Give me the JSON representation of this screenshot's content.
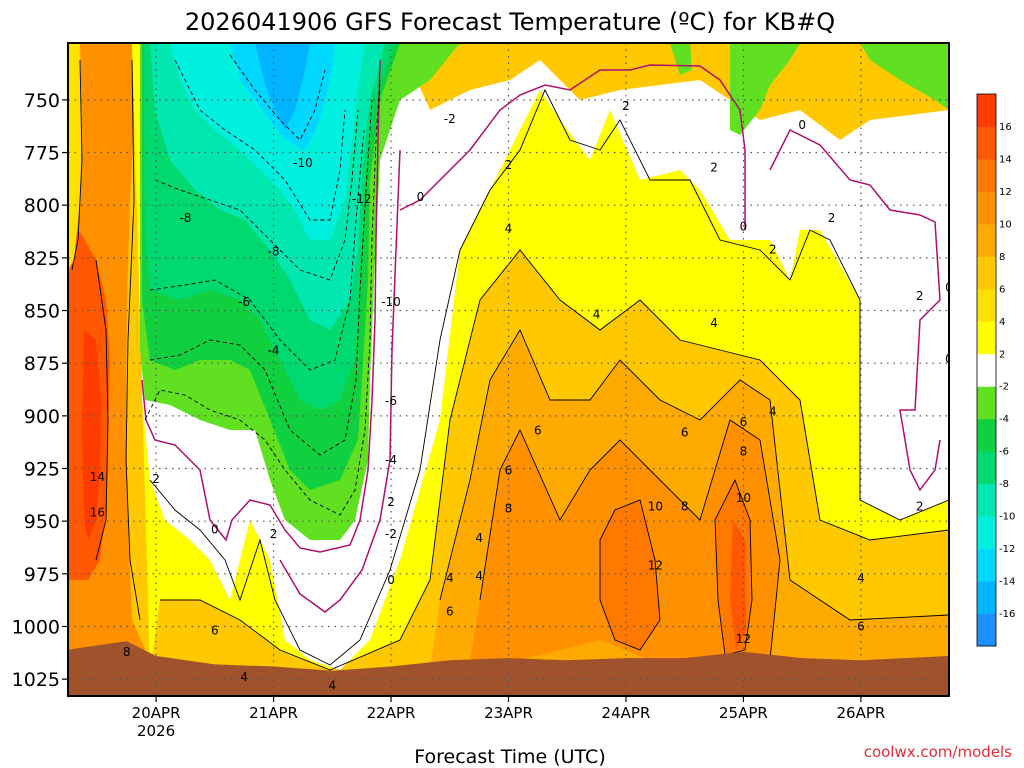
{
  "title": "2026041906 GFS Forecast Temperature (ºC) for KB#Q",
  "watermark": "coolwx.com/models",
  "chart_data": {
    "type": "heatmap",
    "title": "2026041906 GFS Forecast Temperature (ºC) for KB#Q",
    "xlabel": "Forecast Time (UTC)",
    "ylabel": "",
    "x_range": [
      "2026-04-19T06",
      "2026-04-26T18"
    ],
    "x_ticks": [
      {
        "t": "2026-04-20T00",
        "label": "20APR",
        "sublabel": "2026"
      },
      {
        "t": "2026-04-21T00",
        "label": "21APR",
        "sublabel": ""
      },
      {
        "t": "2026-04-22T00",
        "label": "22APR",
        "sublabel": ""
      },
      {
        "t": "2026-04-23T00",
        "label": "23APR",
        "sublabel": ""
      },
      {
        "t": "2026-04-24T00",
        "label": "24APR",
        "sublabel": ""
      },
      {
        "t": "2026-04-25T00",
        "label": "25APR",
        "sublabel": ""
      },
      {
        "t": "2026-04-26T00",
        "label": "26APR",
        "sublabel": ""
      }
    ],
    "y_range_hPa": [
      1033,
      723
    ],
    "y_ticks": [
      {
        "p": 750,
        "label": "750"
      },
      {
        "p": 775,
        "label": "775"
      },
      {
        "p": 800,
        "label": "800"
      },
      {
        "p": 825,
        "label": "825"
      },
      {
        "p": 850,
        "label": "850"
      },
      {
        "p": 875,
        "label": "875"
      },
      {
        "p": 900,
        "label": "900"
      },
      {
        "p": 925,
        "label": "925"
      },
      {
        "p": 950,
        "label": "950"
      },
      {
        "p": 975,
        "label": "975"
      },
      {
        "p": 1000,
        "label": "1000"
      },
      {
        "p": 1025,
        "label": "1025"
      }
    ],
    "grid": true,
    "ground_pressure_hPa": [
      {
        "t": "2026-04-19T06",
        "p": 1011
      },
      {
        "t": "2026-04-19T12",
        "p": 1009
      },
      {
        "t": "2026-04-19T18",
        "p": 1007
      },
      {
        "t": "2026-04-20T00",
        "p": 1014
      },
      {
        "t": "2026-04-20T12",
        "p": 1018
      },
      {
        "t": "2026-04-21T00",
        "p": 1019
      },
      {
        "t": "2026-04-21T12",
        "p": 1021
      },
      {
        "t": "2026-04-22T00",
        "p": 1019
      },
      {
        "t": "2026-04-22T12",
        "p": 1016
      },
      {
        "t": "2026-04-23T00",
        "p": 1015
      },
      {
        "t": "2026-04-23T12",
        "p": 1016
      },
      {
        "t": "2026-04-24T00",
        "p": 1015
      },
      {
        "t": "2026-04-24T12",
        "p": 1015
      },
      {
        "t": "2026-04-25T00",
        "p": 1012
      },
      {
        "t": "2026-04-25T12",
        "p": 1015
      },
      {
        "t": "2026-04-26T00",
        "p": 1016
      },
      {
        "t": "2026-04-26T18",
        "p": 1014
      }
    ],
    "colorbar": {
      "levels": [
        -18,
        -16,
        -14,
        -12,
        -10,
        -8,
        -6,
        -4,
        -2,
        2,
        4,
        6,
        8,
        10,
        12,
        14,
        16,
        18
      ],
      "colors": [
        "#1e90ff",
        "#00b4ff",
        "#00d8ff",
        "#00f0e0",
        "#00e8b0",
        "#00d870",
        "#10d040",
        "#60e020",
        "#ffffff",
        "#ffff00",
        "#ffe000",
        "#ffc800",
        "#ffaa00",
        "#ff9000",
        "#ff7800",
        "#ff5800",
        "#ff3c00"
      ],
      "labels": [
        "16",
        "14",
        "12",
        "10",
        "8",
        "6",
        "4",
        "2",
        "-2",
        "-4",
        "-6",
        "-8",
        "-10",
        "-12",
        "-14",
        "-16"
      ]
    },
    "contour_labels": [
      {
        "t": "2026-04-21T06",
        "p": 780,
        "value": "-10"
      },
      {
        "t": "2026-04-20T06",
        "p": 806,
        "value": "-8"
      },
      {
        "t": "2026-04-21T18",
        "p": 797,
        "value": "-12"
      },
      {
        "t": "2026-04-21T00",
        "p": 822,
        "value": "-8"
      },
      {
        "t": "2026-04-20T18",
        "p": 846,
        "value": "-6"
      },
      {
        "t": "2026-04-21T00",
        "p": 869,
        "value": "-4"
      },
      {
        "t": "2026-04-22T00",
        "p": 846,
        "value": "-10"
      },
      {
        "t": "2026-04-22T00",
        "p": 893,
        "value": "-6"
      },
      {
        "t": "2026-04-22T00",
        "p": 921,
        "value": "-4"
      },
      {
        "t": "2026-04-22T00",
        "p": 956,
        "value": "-2"
      },
      {
        "t": "2026-04-22T12",
        "p": 759,
        "value": "-2"
      },
      {
        "t": "2026-04-22T06",
        "p": 796,
        "value": "0"
      },
      {
        "t": "2026-04-22T00",
        "p": 978,
        "value": "0"
      },
      {
        "t": "2026-04-20T12",
        "p": 954,
        "value": "0"
      },
      {
        "t": "2026-04-20T00",
        "p": 930,
        "value": "2"
      },
      {
        "t": "2026-04-21T00",
        "p": 956,
        "value": "2"
      },
      {
        "t": "2026-04-22T00",
        "p": 941,
        "value": "2"
      },
      {
        "t": "2026-04-23T00",
        "p": 781,
        "value": "2"
      },
      {
        "t": "2026-04-24T00",
        "p": 753,
        "value": "2"
      },
      {
        "t": "2026-04-24T18",
        "p": 782,
        "value": "2"
      },
      {
        "t": "2026-04-25T06",
        "p": 821,
        "value": "2"
      },
      {
        "t": "2026-04-25T18",
        "p": 806,
        "value": "2"
      },
      {
        "t": "2026-04-26T12",
        "p": 843,
        "value": "2"
      },
      {
        "t": "2026-04-26T12",
        "p": 943,
        "value": "2"
      },
      {
        "t": "2026-04-25T12",
        "p": 762,
        "value": "0"
      },
      {
        "t": "2026-04-25T00",
        "p": 810,
        "value": "0"
      },
      {
        "t": "2026-04-26T18",
        "p": 839,
        "value": "0"
      },
      {
        "t": "2026-04-26T18",
        "p": 873,
        "value": "0"
      },
      {
        "t": "2026-04-23T00",
        "p": 811,
        "value": "4"
      },
      {
        "t": "2026-04-23T18",
        "p": 852,
        "value": "4"
      },
      {
        "t": "2026-04-24T18",
        "p": 856,
        "value": "4"
      },
      {
        "t": "2026-04-25T06",
        "p": 898,
        "value": "4"
      },
      {
        "t": "2026-04-22T12",
        "p": 977,
        "value": "4"
      },
      {
        "t": "2026-04-22T18",
        "p": 976,
        "value": "4"
      },
      {
        "t": "2026-04-22T18",
        "p": 958,
        "value": "4"
      },
      {
        "t": "2026-04-21T12",
        "p": 1028,
        "value": "4"
      },
      {
        "t": "2026-04-20T18",
        "p": 1024,
        "value": "4"
      },
      {
        "t": "2026-04-26T00",
        "p": 977,
        "value": "4"
      },
      {
        "t": "2026-04-23T06",
        "p": 907,
        "value": "6"
      },
      {
        "t": "2026-04-23T00",
        "p": 926,
        "value": "6"
      },
      {
        "t": "2026-04-24T12",
        "p": 908,
        "value": "6"
      },
      {
        "t": "2026-04-25T00",
        "p": 903,
        "value": "6"
      },
      {
        "t": "2026-04-22T12",
        "p": 993,
        "value": "6"
      },
      {
        "t": "2026-04-20T12",
        "p": 1002,
        "value": "6"
      },
      {
        "t": "2026-04-26T00",
        "p": 1000,
        "value": "6"
      },
      {
        "t": "2026-04-23T00",
        "p": 944,
        "value": "8"
      },
      {
        "t": "2026-04-24T12",
        "p": 943,
        "value": "8"
      },
      {
        "t": "2026-04-25T00",
        "p": 917,
        "value": "8"
      },
      {
        "t": "2026-04-19T18",
        "p": 1012,
        "value": "8"
      },
      {
        "t": "2026-04-24T06",
        "p": 943,
        "value": "10"
      },
      {
        "t": "2026-04-25T00",
        "p": 939,
        "value": "10"
      },
      {
        "t": "2026-04-24T06",
        "p": 971,
        "value": "12"
      },
      {
        "t": "2026-04-25T00",
        "p": 1006,
        "value": "12"
      },
      {
        "t": "2026-04-19T12",
        "p": 929,
        "value": "14"
      },
      {
        "t": "2026-04-19T12",
        "p": 946,
        "value": "16"
      }
    ]
  }
}
